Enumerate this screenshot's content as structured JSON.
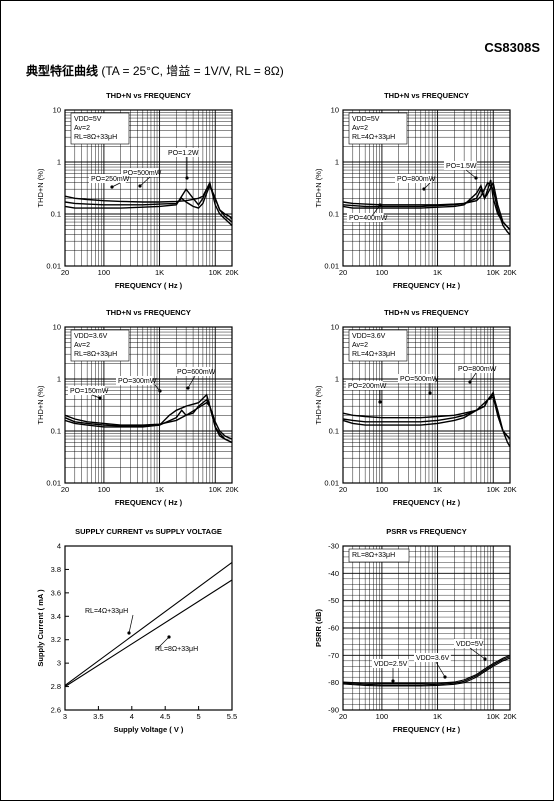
{
  "header": {
    "part_number": "CS8308S",
    "section_title": "典型特征曲线",
    "section_conditions": "(TA = 25°C, 增益 = 1V/V, RL = 8Ω)"
  },
  "chart_data": [
    {
      "type": "line",
      "id": "thd_5v_4ohm_33uh",
      "scale": "log-log",
      "title": "THD+N vs FREQUENCY",
      "xlabel": "FREQUENCY ( Hz )",
      "ylabel": "THD+N (%)",
      "xlim": [
        20,
        20000
      ],
      "ylim": [
        0.01,
        10
      ],
      "xticks": [
        "20",
        "100",
        "1K",
        "10K",
        "20K"
      ],
      "xtick_values": [
        20,
        100,
        1000,
        10000,
        20000
      ],
      "yticks": [
        "10",
        "1",
        "0.1",
        "0.01"
      ],
      "ytick_values": [
        10,
        1,
        0.1,
        0.01
      ],
      "grid": true,
      "conditions": [
        "VDD=5V",
        "Av=2",
        "RL=8Ω+33μH"
      ],
      "series": [
        {
          "name": "PO=250mW",
          "x": [
            20,
            30,
            50,
            100,
            200,
            500,
            1000,
            2000,
            3000,
            5000,
            6000,
            7000,
            8000,
            10000,
            12000,
            15000,
            18000,
            20000
          ],
          "y": [
            0.22,
            0.2,
            0.19,
            0.18,
            0.175,
            0.17,
            0.17,
            0.175,
            0.18,
            0.2,
            0.22,
            0.3,
            0.35,
            0.2,
            0.12,
            0.1,
            0.09,
            0.08
          ]
        },
        {
          "name": "PO=500mW",
          "x": [
            20,
            30,
            50,
            100,
            200,
            500,
            1000,
            2000,
            2500,
            3000,
            4000,
            5000,
            6000,
            7000,
            8000,
            10000,
            12000,
            15000,
            20000
          ],
          "y": [
            0.17,
            0.16,
            0.155,
            0.15,
            0.15,
            0.15,
            0.155,
            0.16,
            0.2,
            0.17,
            0.14,
            0.13,
            0.16,
            0.25,
            0.35,
            0.2,
            0.12,
            0.09,
            0.07
          ]
        },
        {
          "name": "PO=1.2W",
          "x": [
            20,
            30,
            50,
            100,
            200,
            500,
            1000,
            2000,
            3000,
            4000,
            5000,
            6000,
            7000,
            8000,
            10000,
            12000,
            15000,
            20000
          ],
          "y": [
            0.14,
            0.13,
            0.13,
            0.13,
            0.13,
            0.135,
            0.14,
            0.15,
            0.3,
            0.2,
            0.15,
            0.2,
            0.3,
            0.4,
            0.15,
            0.1,
            0.08,
            0.06
          ]
        }
      ],
      "annotations": [
        "PO=1.2W",
        "PO=500mW",
        "PO=250mW"
      ]
    },
    {
      "type": "line",
      "id": "thd_5v_4ohm",
      "scale": "log-log",
      "title": "THD+N vs FREQUENCY",
      "xlabel": "FREQUENCY ( Hz )",
      "ylabel": "THD+N (%)",
      "xlim": [
        20,
        20000
      ],
      "ylim": [
        0.01,
        10
      ],
      "xticks": [
        "20",
        "100",
        "1K",
        "10K",
        "20K"
      ],
      "xtick_values": [
        20,
        100,
        1000,
        10000,
        20000
      ],
      "yticks": [
        "10",
        "1",
        "0.1",
        "0.01"
      ],
      "ytick_values": [
        10,
        1,
        0.1,
        0.01
      ],
      "grid": true,
      "conditions": [
        "VDD=5V",
        "Av=2",
        "RL=4Ω+33μH"
      ],
      "series": [
        {
          "name": "PO=400mW",
          "x": [
            20,
            30,
            50,
            100,
            200,
            500,
            1000,
            2000,
            3000,
            5000,
            6000,
            8000,
            10000,
            12000,
            15000,
            18000,
            20000
          ],
          "y": [
            0.17,
            0.16,
            0.155,
            0.15,
            0.15,
            0.15,
            0.15,
            0.155,
            0.16,
            0.18,
            0.22,
            0.4,
            0.3,
            0.12,
            0.06,
            0.045,
            0.04
          ]
        },
        {
          "name": "PO=800mW",
          "x": [
            20,
            30,
            50,
            100,
            200,
            500,
            1000,
            2000,
            3000,
            5000,
            6000,
            7000,
            8000,
            10000,
            12000,
            15000,
            20000
          ],
          "y": [
            0.15,
            0.145,
            0.14,
            0.14,
            0.14,
            0.14,
            0.145,
            0.15,
            0.16,
            0.2,
            0.3,
            0.2,
            0.25,
            0.4,
            0.15,
            0.07,
            0.05
          ]
        },
        {
          "name": "PO=1.5W",
          "x": [
            20,
            30,
            50,
            100,
            200,
            500,
            1000,
            2000,
            3000,
            5000,
            6000,
            7000,
            8000,
            9000,
            10000,
            12000,
            15000,
            20000
          ],
          "y": [
            0.14,
            0.13,
            0.13,
            0.13,
            0.13,
            0.13,
            0.135,
            0.14,
            0.15,
            0.25,
            0.35,
            0.2,
            0.3,
            0.45,
            0.2,
            0.1,
            0.07,
            0.05
          ]
        }
      ],
      "annotations": [
        "PO=1.5W",
        "PO=800mW",
        "PO=400mW"
      ]
    },
    {
      "type": "line",
      "id": "thd_3v6_8ohm",
      "scale": "log-log",
      "title": "THD+N vs FREQUENCY",
      "xlabel": "FREQUENCY ( Hz )",
      "ylabel": "THD+N (%)",
      "xlim": [
        20,
        20000
      ],
      "ylim": [
        0.01,
        10
      ],
      "xticks": [
        "20",
        "100",
        "1K",
        "10K",
        "20K"
      ],
      "xtick_values": [
        20,
        100,
        1000,
        10000,
        20000
      ],
      "yticks": [
        "10",
        "1",
        "0.1",
        "0.01"
      ],
      "ytick_values": [
        10,
        1,
        0.1,
        0.01
      ],
      "grid": true,
      "conditions": [
        "VDD=3.6V",
        "Av=2",
        "RL=8Ω+33μH"
      ],
      "series": [
        {
          "name": "PO=150mW",
          "x": [
            20,
            30,
            50,
            100,
            200,
            500,
            1000,
            2000,
            3000,
            5000,
            7000,
            8000,
            10000,
            12000,
            15000,
            20000
          ],
          "y": [
            0.2,
            0.17,
            0.15,
            0.14,
            0.13,
            0.13,
            0.135,
            0.16,
            0.2,
            0.28,
            0.35,
            0.3,
            0.12,
            0.08,
            0.07,
            0.06
          ]
        },
        {
          "name": "PO=300mW",
          "x": [
            20,
            30,
            50,
            100,
            200,
            500,
            1000,
            2000,
            2500,
            3000,
            4000,
            5000,
            7000,
            8000,
            10000,
            12000,
            15000,
            20000
          ],
          "y": [
            0.18,
            0.15,
            0.14,
            0.13,
            0.125,
            0.125,
            0.13,
            0.18,
            0.25,
            0.2,
            0.22,
            0.3,
            0.4,
            0.3,
            0.15,
            0.1,
            0.08,
            0.07
          ]
        },
        {
          "name": "PO=600mW",
          "x": [
            20,
            30,
            50,
            100,
            200,
            500,
            1000,
            1500,
            2000,
            3000,
            5000,
            7000,
            8000,
            10000,
            12000,
            15000,
            20000
          ],
          "y": [
            0.16,
            0.14,
            0.13,
            0.12,
            0.12,
            0.12,
            0.13,
            0.2,
            0.25,
            0.3,
            0.35,
            0.5,
            0.3,
            0.12,
            0.09,
            0.07,
            0.06
          ]
        }
      ],
      "annotations": [
        "PO=600mW",
        "PO=300mW",
        "PO=150mW"
      ]
    },
    {
      "type": "line",
      "id": "thd_3v6_4ohm",
      "scale": "log-log",
      "title": "THD+N vs FREQUENCY",
      "xlabel": "FREQUENCY ( Hz )",
      "ylabel": "THD+N (%)",
      "xlim": [
        20,
        20000
      ],
      "ylim": [
        0.01,
        10
      ],
      "xticks": [
        "20",
        "100",
        "1K",
        "10K",
        "20K"
      ],
      "xtick_values": [
        20,
        100,
        1000,
        10000,
        20000
      ],
      "yticks": [
        "10",
        "1",
        "0.1",
        "0.01"
      ],
      "ytick_values": [
        10,
        1,
        0.1,
        0.01
      ],
      "grid": true,
      "conditions": [
        "VDD=3.6V",
        "Av=2",
        "RL=4Ω+33μH"
      ],
      "series": [
        {
          "name": "PO=200mW",
          "x": [
            20,
            30,
            50,
            100,
            200,
            500,
            1000,
            2000,
            3000,
            5000,
            7000,
            8000,
            10000,
            12000,
            15000,
            18000,
            20000
          ],
          "y": [
            0.22,
            0.2,
            0.19,
            0.18,
            0.18,
            0.18,
            0.19,
            0.2,
            0.22,
            0.25,
            0.3,
            0.4,
            0.5,
            0.25,
            0.1,
            0.06,
            0.05
          ]
        },
        {
          "name": "PO=500mW",
          "x": [
            20,
            30,
            50,
            100,
            200,
            500,
            1000,
            2000,
            3000,
            5000,
            7000,
            8000,
            10000,
            12000,
            15000,
            20000
          ],
          "y": [
            0.17,
            0.16,
            0.15,
            0.15,
            0.15,
            0.15,
            0.16,
            0.18,
            0.2,
            0.25,
            0.35,
            0.4,
            0.45,
            0.2,
            0.1,
            0.07
          ]
        },
        {
          "name": "PO=800mW",
          "x": [
            20,
            30,
            50,
            100,
            200,
            500,
            1000,
            2000,
            3000,
            5000,
            7000,
            8000,
            10000,
            12000,
            15000,
            20000
          ],
          "y": [
            0.16,
            0.14,
            0.13,
            0.13,
            0.13,
            0.13,
            0.14,
            0.16,
            0.18,
            0.25,
            0.3,
            0.4,
            0.55,
            0.2,
            0.1,
            0.07
          ]
        }
      ],
      "annotations": [
        "PO=800mW",
        "PO=500mW",
        "PO=200mW"
      ]
    },
    {
      "type": "line",
      "id": "supply_current",
      "scale": "linear",
      "title": "SUPPLY CURRENT vs SUPPLY VOLTAGE",
      "xlabel": "Supply Voltage ( V )",
      "ylabel": "Supply Current ( mA )",
      "xlim": [
        3,
        5.5
      ],
      "ylim": [
        2.6,
        4
      ],
      "xticks": [
        "3",
        "3.5",
        "4",
        "4.5",
        "5",
        "5.5"
      ],
      "xtick_values": [
        3,
        3.5,
        4,
        4.5,
        5,
        5.5
      ],
      "yticks": [
        "4",
        "3.8",
        "3.6",
        "3.4",
        "3.2",
        "3",
        "2.8",
        "2.6"
      ],
      "ytick_values": [
        4,
        3.8,
        3.6,
        3.4,
        3.2,
        3,
        2.8,
        2.6
      ],
      "grid": false,
      "series": [
        {
          "name": "RL=4Ω+33μH",
          "x": [
            3,
            5.5
          ],
          "y": [
            2.81,
            3.86
          ]
        },
        {
          "name": "RL=8Ω+33μH",
          "x": [
            3,
            5.5
          ],
          "y": [
            2.8,
            3.71
          ]
        }
      ],
      "annotations": [
        "RL=4Ω+33μH",
        "RL=8Ω+33μH"
      ]
    },
    {
      "type": "line",
      "id": "psrr",
      "scale": "semilog-x",
      "title": "PSRR vs FREQUENCY",
      "xlabel": "FREQUENCY ( Hz )",
      "ylabel": "PSRR (dB)",
      "xlim": [
        20,
        20000
      ],
      "ylim": [
        -90,
        -30
      ],
      "xticks": [
        "20",
        "100",
        "1K",
        "10K",
        "20K"
      ],
      "xtick_values": [
        20,
        100,
        1000,
        10000,
        20000
      ],
      "yticks": [
        "-30",
        "-40",
        "-50",
        "-60",
        "-70",
        "-80",
        "-90"
      ],
      "ytick_values": [
        -30,
        -40,
        -50,
        -60,
        -70,
        -80,
        -90
      ],
      "grid": true,
      "conditions": [
        "RL=8Ω+33μH"
      ],
      "series": [
        {
          "name": "VDD=2.5V",
          "x": [
            20,
            50,
            100,
            200,
            500,
            1000,
            2000,
            3000,
            5000,
            7000,
            10000,
            15000,
            20000
          ],
          "y": [
            -79.8,
            -80.2,
            -80.3,
            -80.3,
            -80.3,
            -80.2,
            -79.8,
            -79,
            -77,
            -75,
            -73,
            -71,
            -70
          ]
        },
        {
          "name": "VDD=3.6V",
          "x": [
            20,
            50,
            100,
            200,
            500,
            1000,
            2000,
            3000,
            5000,
            7000,
            10000,
            15000,
            20000
          ],
          "y": [
            -80.2,
            -80.6,
            -80.8,
            -80.8,
            -80.8,
            -80.6,
            -80.2,
            -79.5,
            -77.5,
            -75.5,
            -73.5,
            -71.5,
            -70.5
          ]
        },
        {
          "name": "VDD=5V",
          "x": [
            20,
            50,
            100,
            200,
            500,
            1000,
            2000,
            3000,
            5000,
            7000,
            10000,
            15000,
            20000
          ],
          "y": [
            -80.5,
            -81,
            -81.2,
            -81.2,
            -81.2,
            -81,
            -80.6,
            -80,
            -78,
            -76,
            -74,
            -72,
            -71
          ]
        }
      ],
      "annotations": [
        "VDD=5V",
        "VDD=3.6V",
        "VDD=2.5V"
      ]
    }
  ]
}
